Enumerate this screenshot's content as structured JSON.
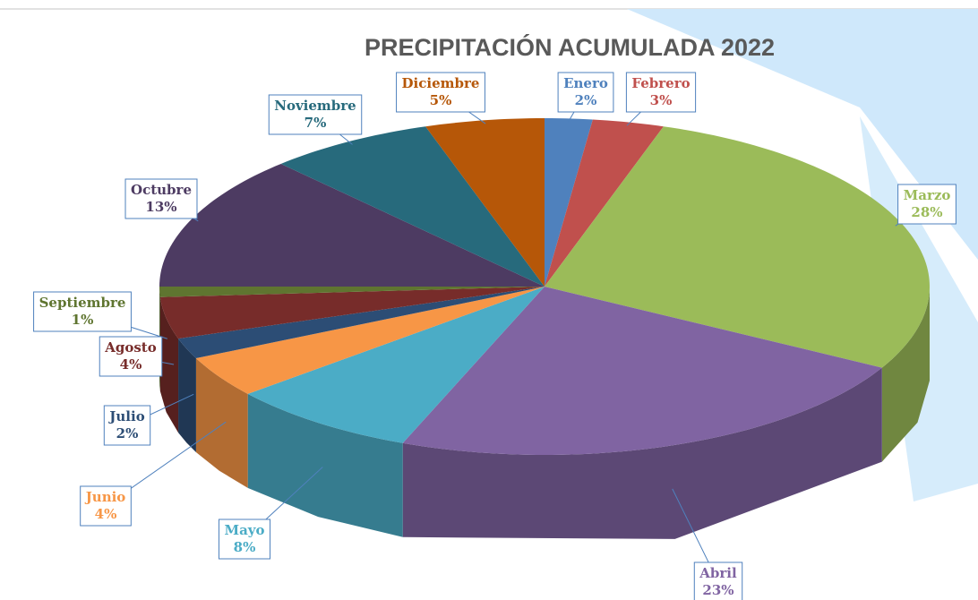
{
  "chart_data": {
    "type": "pie",
    "title": "PRECIPITACIÓN ACUMULADA 2022",
    "categories": [
      "Enero",
      "Febrero",
      "Marzo",
      "Abril",
      "Mayo",
      "Junio",
      "Julio",
      "Agosto",
      "Septiembre",
      "Octubre",
      "Noviembre",
      "Diciembre"
    ],
    "values": [
      2,
      3,
      28,
      23,
      8,
      4,
      2,
      4,
      1,
      13,
      7,
      5
    ],
    "value_labels": [
      "2%",
      "3%",
      "28%",
      "23%",
      "8%",
      "4%",
      "2%",
      "4%",
      "1%",
      "13%",
      "7%",
      "5%"
    ],
    "colors": [
      "#4f81bd",
      "#c0504d",
      "#9bbb59",
      "#8064a2",
      "#4bacc6",
      "#f79646",
      "#2c4d75",
      "#772c2a",
      "#5f7530",
      "#4d3b62",
      "#276a7c",
      "#b65708"
    ]
  }
}
